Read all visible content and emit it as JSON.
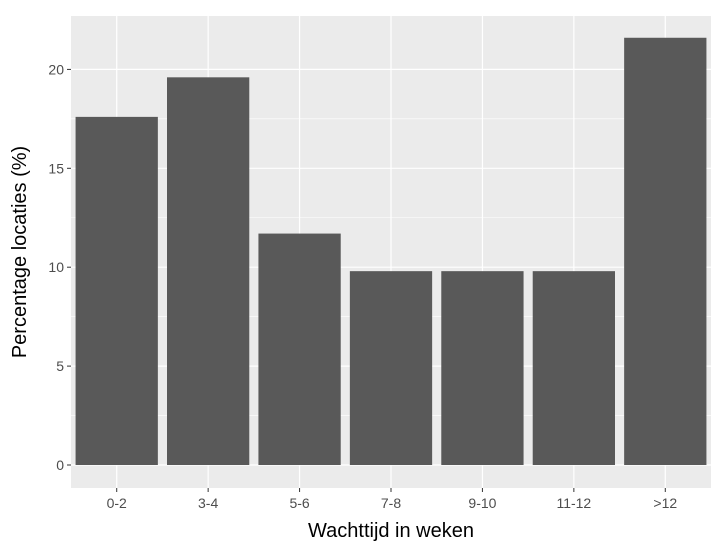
{
  "chart_data": {
    "type": "bar",
    "categories": [
      "0-2",
      "3-4",
      "5-6",
      "7-8",
      "9-10",
      "11-12",
      ">12"
    ],
    "values": [
      17.6,
      19.6,
      11.7,
      9.8,
      9.8,
      9.8,
      21.6
    ],
    "title": "",
    "xlabel": "Wachttijd in weken",
    "ylabel": "Percentage locaties (%)",
    "ylim": [
      0,
      22.7
    ],
    "yticks": [
      0,
      5,
      10,
      15,
      20
    ],
    "grid": true,
    "legend": "none",
    "colors": {
      "bar": "#595959",
      "panel_background": "#ebebeb",
      "grid_major": "#ffffff",
      "tick_label": "#4d4d4d",
      "axis_title": "#000000"
    }
  }
}
